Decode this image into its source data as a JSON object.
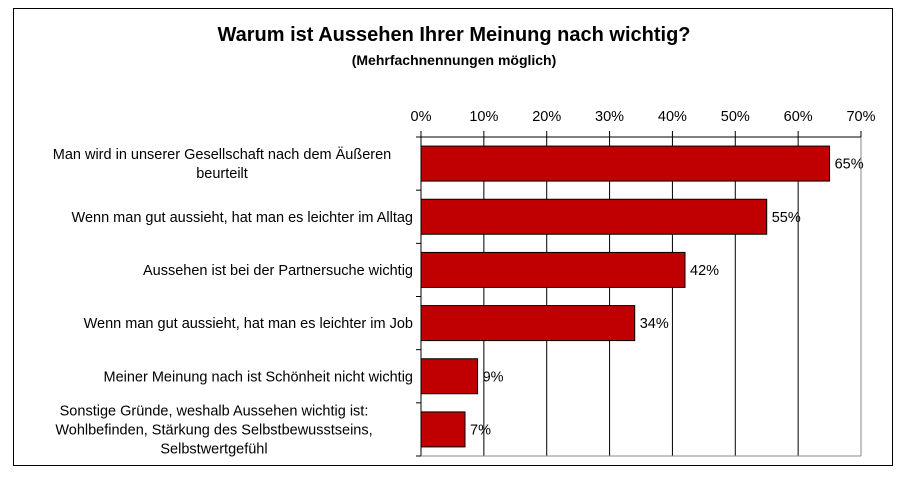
{
  "chart_data": {
    "type": "bar",
    "orientation": "horizontal",
    "title": "Warum ist Aussehen Ihrer Meinung nach wichtig?",
    "subtitle": "(Mehrfachnennungen möglich)",
    "categories": [
      [
        "Man wird in unserer Gesellschaft nach dem Äußeren",
        "beurteilt"
      ],
      [
        "Wenn man gut aussieht, hat man es leichter im Alltag"
      ],
      [
        "Aussehen ist bei der Partnersuche wichtig"
      ],
      [
        "Wenn man gut aussieht, hat man es leichter im Job"
      ],
      [
        "Meiner Meinung nach ist Schönheit nicht wichtig"
      ],
      [
        "Sonstige Gründe, weshalb Aussehen wichtig ist:",
        "Wohlbefinden, Stärkung des Selbstbewusstseins,",
        "Selbstwertgefühl"
      ]
    ],
    "values": [
      65,
      55,
      42,
      34,
      9,
      7
    ],
    "data_labels": [
      "65%",
      "55%",
      "42%",
      "34%",
      "9%",
      "7%"
    ],
    "xlim": [
      0,
      70
    ],
    "ticks": [
      "0%",
      "10%",
      "20%",
      "30%",
      "40%",
      "50%",
      "60%",
      "70%"
    ],
    "x_axis_position": "top",
    "grid": true,
    "legend": "none",
    "bar_color": "#C00000"
  }
}
